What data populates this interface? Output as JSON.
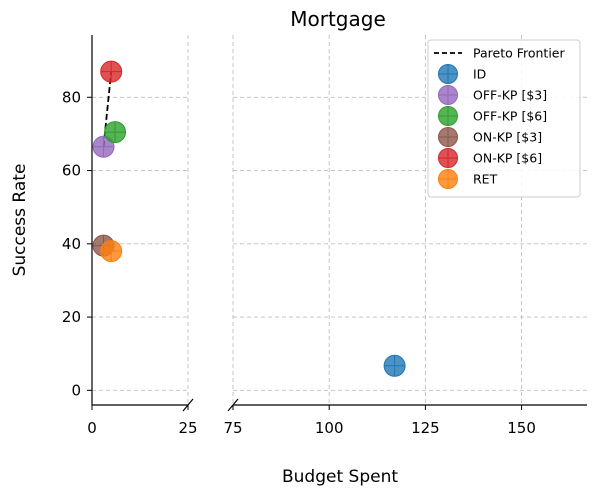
{
  "chart_data": {
    "type": "scatter",
    "title": "Mortgage",
    "xlabel": "Budget Spent",
    "ylabel": "Success Rate",
    "broken_x_axis": true,
    "x_segments": [
      {
        "xlim": [
          0,
          25
        ],
        "ticks": [
          0,
          25
        ]
      },
      {
        "xlim": [
          75,
          167
        ],
        "ticks": [
          75,
          100,
          125,
          150
        ]
      }
    ],
    "ylim": [
      -4,
      97
    ],
    "yticks": [
      0,
      20,
      40,
      60,
      80
    ],
    "grid": true,
    "legend_position": "top-right",
    "series": [
      {
        "name": "ID",
        "color": "#1f77b4",
        "points": [
          [
            117,
            6.7
          ]
        ]
      },
      {
        "name": "OFF-KP [$3]",
        "color": "#9467bd",
        "points": [
          [
            3,
            66.5
          ]
        ]
      },
      {
        "name": "OFF-KP [$6]",
        "color": "#2ca02c",
        "points": [
          [
            6,
            70.5
          ]
        ]
      },
      {
        "name": "ON-KP [$3]",
        "color": "#8c564b",
        "points": [
          [
            3,
            39.5
          ]
        ]
      },
      {
        "name": "ON-KP [$6]",
        "color": "#d62728",
        "points": [
          [
            5,
            87
          ]
        ]
      },
      {
        "name": "RET",
        "color": "#ff7f0e",
        "points": [
          [
            5,
            38
          ]
        ]
      }
    ],
    "pareto_frontier": {
      "name": "Pareto Frontier",
      "style": "dashed",
      "color": "#000000",
      "points": [
        [
          3,
          66.5
        ],
        [
          5,
          87
        ]
      ]
    }
  }
}
